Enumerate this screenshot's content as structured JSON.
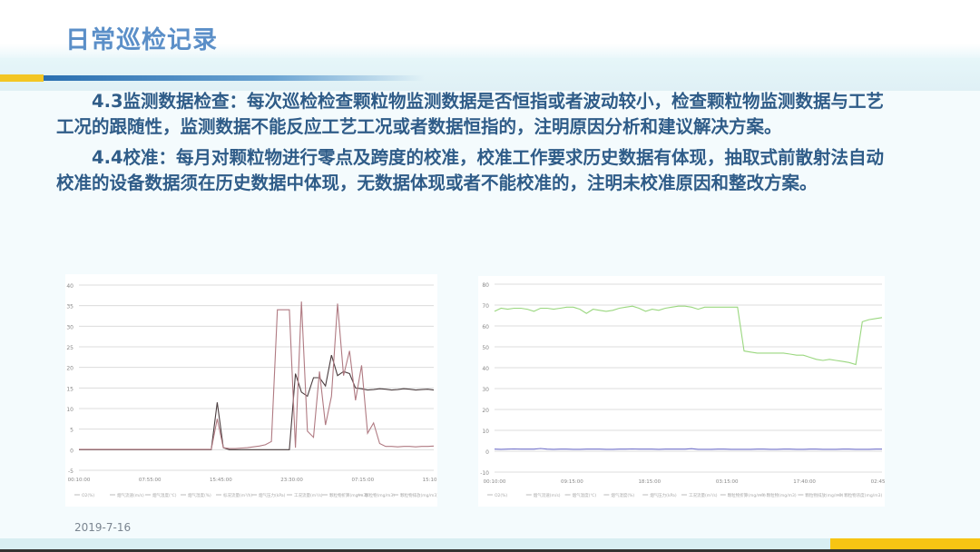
{
  "slide": {
    "title": "日常巡检记录",
    "paragraphs": [
      "4.3监测数据检查：每次巡检检查颗粒物监测数据是否恒指或者波动较小，检查颗粒物监测数据与工艺工况的跟随性，监测数据不能反应工艺工况或者数据恒指的，注明原因分析和建议解决方案。",
      "4.4校准：每月对颗粒物进行零点及跨度的校准，校准工作要求历史数据有体现，抽取式前散射法自动校准的设备数据须在历史数据中体现，无数据体现或者不能校准的，注明未校准原因和整改方案。"
    ],
    "date": "2019-7-16",
    "colors": {
      "title": "#5b8fc8",
      "body": "#2f5c88",
      "accent_gold": "#f3c623",
      "accent_blue": "#2a6fb0"
    }
  },
  "chart_data": [
    {
      "type": "line",
      "grid": true,
      "legend_placement": "bottom",
      "ylim": [
        -5,
        40
      ],
      "yticks": [
        -5,
        0,
        5,
        10,
        15,
        20,
        25,
        30,
        35,
        40
      ],
      "xticks": [
        "00:10:00",
        "07:55:00",
        "15:45:00",
        "23:30:00",
        "07:15:00",
        "15:10:00"
      ],
      "legend": [
        "O2(%)",
        "烟气流速(m/s)",
        "烟气温度(℃)",
        "烟气湿度(%)",
        "标况流量(m³/h)",
        "烟气压力(kPa)",
        "工况流量(m³/s)",
        "颗粒物折算(mg/m3)",
        "颗粒物(mg/m3)",
        "颗粒物排放(mg/m3)"
      ],
      "series": [
        {
          "color": "#4a3c3e",
          "values": [
            0,
            0,
            0,
            0,
            0,
            0,
            0,
            0,
            0,
            0,
            0,
            0,
            0,
            0,
            0,
            0,
            0,
            0,
            0,
            0,
            0,
            0,
            0,
            11.5,
            0.5,
            0,
            0,
            0,
            0,
            0,
            0,
            0,
            0,
            0,
            0,
            0,
            18.5,
            14,
            13,
            17.5,
            17.5,
            15.5,
            23,
            18,
            19,
            18.5,
            15,
            14.8,
            14.5,
            14.6,
            14.8,
            14.7,
            14.5,
            14.6,
            14.8,
            14.7,
            14.5,
            14.6,
            14.7,
            14.5
          ]
        },
        {
          "color": "#b07a82",
          "values": [
            0.1,
            0.1,
            0.1,
            0.1,
            0.1,
            0.1,
            0.1,
            0.1,
            0.1,
            0.1,
            0.1,
            0.1,
            0.1,
            0.1,
            0.1,
            0.1,
            0.1,
            0.1,
            0.1,
            0.1,
            0.1,
            0.1,
            0.1,
            7.5,
            0.5,
            0.3,
            0.3,
            0.4,
            0.5,
            0.7,
            0.9,
            1.2,
            2,
            34,
            34,
            34,
            0.5,
            36,
            4.5,
            3,
            19,
            6,
            13,
            35.5,
            18,
            24,
            12,
            20.5,
            4,
            6.5,
            1.5,
            0.8,
            0.8,
            0.7,
            0.8,
            0.8,
            0.7,
            0.8,
            0.8,
            0.9
          ]
        }
      ]
    },
    {
      "type": "line",
      "grid": true,
      "legend_placement": "bottom",
      "ylim": [
        -10,
        80
      ],
      "yticks": [
        -10,
        0,
        10,
        20,
        30,
        40,
        50,
        60,
        70,
        80
      ],
      "xticks": [
        "00:10:00",
        "09:15:00",
        "18:15:00",
        "03:15:00",
        "17:40:00",
        "02:45:00"
      ],
      "legend": [
        "O2(%)",
        "烟气流速(m/s)",
        "烟气温度(℃)",
        "烟气湿度(%)",
        "烟气压力(kPa)",
        "工况流量(m³/s)",
        "颗粒物折算(mg/m3)",
        "颗粒物(mg/m3)",
        "颗粒物排放(mg/m3)",
        "颗粒物浓度(mg/m3)"
      ],
      "series": [
        {
          "color": "#9ad77f",
          "values": [
            67,
            68.5,
            68,
            68.5,
            68.5,
            68,
            67,
            68.5,
            68.5,
            68,
            68.5,
            69,
            69,
            68,
            66,
            68,
            67.5,
            67,
            67.5,
            68.5,
            69,
            69.5,
            68.5,
            67,
            68,
            67.5,
            68.5,
            69,
            69.5,
            69.5,
            69,
            68,
            69,
            69,
            69,
            69,
            69,
            69,
            48,
            47.5,
            47,
            47,
            47,
            47,
            47,
            46.5,
            46,
            46,
            45,
            44,
            43.5,
            44,
            43.5,
            43,
            42.5,
            41.5,
            62,
            63,
            63.5,
            64
          ]
        },
        {
          "color": "#6f6fc8",
          "values": [
            1,
            0.9,
            1,
            1.1,
            1,
            1,
            1,
            1.3,
            1,
            0.9,
            1,
            1,
            0.9,
            0.9,
            1,
            1,
            1,
            0.9,
            0.9,
            1,
            1,
            1.1,
            1,
            1,
            1,
            0.9,
            1,
            1,
            1,
            1,
            1.2,
            0.9,
            0.9,
            0.9,
            1,
            1,
            0.9,
            0.9,
            0.9,
            0.9,
            1,
            1,
            0.9,
            0.9,
            1,
            1,
            0.9,
            0.9,
            1,
            1,
            0.9,
            0.9,
            0.9,
            1,
            1,
            0.9,
            0.9,
            0.9,
            1,
            1
          ]
        }
      ]
    }
  ]
}
